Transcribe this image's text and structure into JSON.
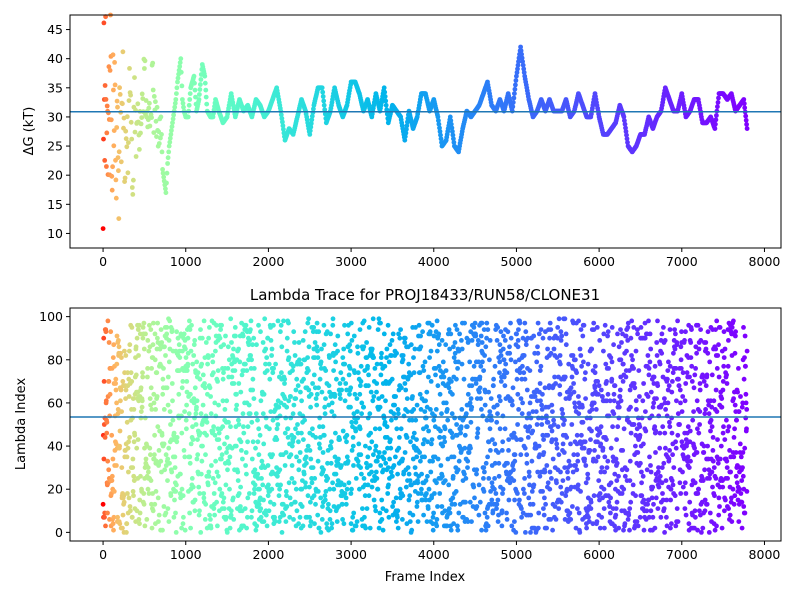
{
  "chart_data": [
    {
      "type": "scatter",
      "title": "",
      "xlabel": "",
      "ylabel": "ΔG (kT)",
      "xlim": [
        -400,
        8200
      ],
      "ylim": [
        7.5,
        47.5
      ],
      "xticks": [
        0,
        1000,
        2000,
        3000,
        4000,
        5000,
        6000,
        7000,
        8000
      ],
      "yticks": [
        10,
        15,
        20,
        25,
        30,
        35,
        40,
        45
      ],
      "hline": 30.9,
      "hline_color": "#1f77b4",
      "color_scheme": "rainbow (red at frame 0 → violet at last frame)",
      "grid": false,
      "series": [
        {
          "x": [
            0,
            10,
            20,
            30,
            40,
            50,
            60,
            70,
            80,
            90,
            100,
            110,
            120,
            130,
            140,
            150,
            160,
            170,
            180,
            190,
            200,
            220,
            240,
            260,
            280,
            300,
            320,
            340,
            360,
            380,
            400,
            420,
            440,
            460,
            480,
            500,
            520,
            540,
            560,
            580,
            600,
            620,
            640,
            660,
            680,
            700,
            720,
            740,
            760,
            780,
            800,
            820,
            840,
            860,
            880,
            900,
            920,
            940,
            960,
            980,
            1000,
            1030,
            1060,
            1100,
            1130,
            1160,
            1200,
            1230,
            1260,
            1300,
            1330,
            1360,
            1400,
            1450,
            1500,
            1550,
            1600,
            1650,
            1700,
            1750,
            1800,
            1850,
            1900,
            1950,
            2000,
            2050,
            2100,
            2150,
            2200,
            2250,
            2300,
            2350,
            2400,
            2450,
            2500,
            2550,
            2600,
            2650,
            2700,
            2750,
            2800,
            2850,
            2900,
            2950,
            3000,
            3050,
            3100,
            3150,
            3200,
            3250,
            3300,
            3350,
            3400,
            3450,
            3500,
            3550,
            3600,
            3650,
            3700,
            3750,
            3800,
            3850,
            3900,
            3950,
            4000,
            4050,
            4100,
            4150,
            4200,
            4250,
            4300,
            4350,
            4400,
            4450,
            4500,
            4550,
            4600,
            4650,
            4700,
            4750,
            4800,
            4850,
            4900,
            4950,
            5000,
            5050,
            5100,
            5150,
            5200,
            5250,
            5300,
            5350,
            5400,
            5450,
            5500,
            5550,
            5600,
            5650,
            5700,
            5750,
            5800,
            5850,
            5900,
            5950,
            6000,
            6050,
            6100,
            6150,
            6200,
            6250,
            6300,
            6350,
            6400,
            6450,
            6500,
            6550,
            6600,
            6650,
            6700,
            6750,
            6800,
            6850,
            6900,
            6950,
            7000,
            7050,
            7100,
            7150,
            7200,
            7250,
            7300,
            7350,
            7400,
            7450,
            7500,
            7550,
            7600,
            7650,
            7700,
            7750,
            7790
          ],
          "y": [
            10,
            42,
            20,
            47,
            26,
            34,
            18,
            40,
            24,
            44,
            30,
            14,
            38,
            22,
            41,
            27,
            16,
            35,
            28,
            12,
            33,
            25,
            37,
            21,
            31,
            23,
            36,
            28,
            19,
            32,
            26,
            37,
            24,
            30,
            34,
            39,
            31,
            27,
            35,
            30,
            36,
            29,
            33,
            26,
            24,
            30,
            21,
            19,
            17,
            22,
            25,
            27,
            29,
            31,
            33,
            36,
            38,
            40,
            33,
            31,
            30,
            30,
            35,
            37,
            31,
            33,
            39,
            37,
            31,
            30,
            30,
            33,
            31,
            29,
            30,
            34,
            30,
            33,
            31,
            32,
            30,
            33,
            32,
            30,
            31,
            33,
            35,
            31,
            26,
            28,
            27,
            30,
            33,
            31,
            27,
            32,
            35,
            35,
            29,
            31,
            35,
            32,
            30,
            32,
            36,
            36,
            34,
            31,
            33,
            30,
            34,
            31,
            35,
            29,
            32,
            31,
            30,
            26,
            31,
            28,
            30,
            34,
            34,
            31,
            33,
            30,
            25,
            26,
            30,
            25,
            24,
            28,
            31,
            30,
            31,
            32,
            34,
            36,
            32,
            31,
            33,
            31,
            34,
            31,
            37,
            42,
            37,
            33,
            30,
            31,
            33,
            31,
            33,
            31,
            31,
            31,
            33,
            30,
            31,
            34,
            32,
            30,
            30,
            34,
            30,
            27,
            27,
            28,
            29,
            32,
            30,
            25,
            24,
            25,
            27,
            27,
            30,
            28,
            30,
            31,
            35,
            33,
            31,
            31,
            34,
            30,
            31,
            33,
            33,
            29,
            29,
            30,
            28,
            34,
            34,
            33,
            34,
            31,
            32,
            33,
            28
          ]
        }
      ]
    },
    {
      "type": "scatter",
      "title": "Lambda Trace for PROJ18433/RUN58/CLONE31",
      "xlabel": "Frame Index",
      "ylabel": "Lambda Index",
      "xlim": [
        -400,
        8200
      ],
      "ylim": [
        -4,
        104
      ],
      "xticks": [
        0,
        1000,
        2000,
        3000,
        4000,
        5000,
        6000,
        7000,
        8000
      ],
      "yticks": [
        0,
        20,
        40,
        60,
        80,
        100
      ],
      "hline": 53.5,
      "hline_color": "#1f77b4",
      "color_scheme": "rainbow (red at frame 0 → violet at last frame)",
      "grid": false,
      "series": [
        {
          "x_range": [
            0,
            7790
          ],
          "y_range": [
            0,
            99
          ],
          "point_count": 3200,
          "description": "lambda index hops across replicas 0–99 throughout the trajectory"
        }
      ]
    }
  ]
}
